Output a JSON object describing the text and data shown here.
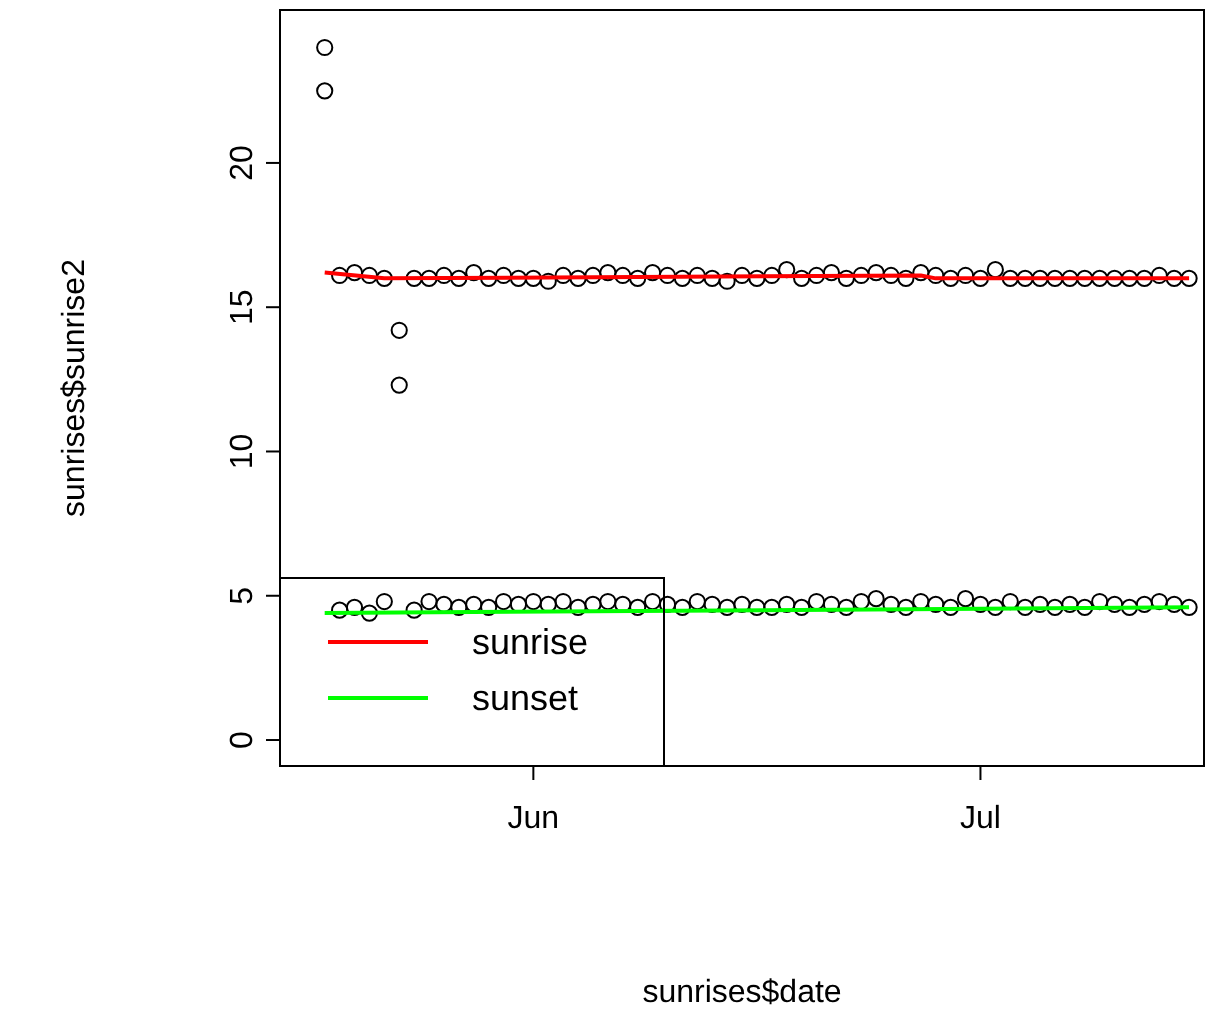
{
  "chart_data": {
    "type": "scatter",
    "xlabel": "sunrises$date",
    "ylabel": "sunrises$sunrise2",
    "x": [
      "--05-18",
      "--05-19",
      "--05-20",
      "--05-21",
      "--05-22",
      "--05-23",
      "--05-24",
      "--05-25",
      "--05-26",
      "--05-27",
      "--05-28",
      "--05-29",
      "--05-30",
      "--05-31",
      "--06-01",
      "--06-02",
      "--06-03",
      "--06-04",
      "--06-05",
      "--06-06",
      "--06-07",
      "--06-08",
      "--06-09",
      "--06-10",
      "--06-11",
      "--06-12",
      "--06-13",
      "--06-14",
      "--06-15",
      "--06-16",
      "--06-17",
      "--06-18",
      "--06-19",
      "--06-20",
      "--06-21",
      "--06-22",
      "--06-23",
      "--06-24",
      "--06-25",
      "--06-26",
      "--06-27",
      "--06-28",
      "--06-29",
      "--06-30",
      "--07-01",
      "--07-02",
      "--07-03",
      "--07-04",
      "--07-05",
      "--07-06",
      "--07-07",
      "--07-08",
      "--07-09",
      "--07-10",
      "--07-11",
      "--07-12",
      "--07-13",
      "--07-14",
      "--07-15"
    ],
    "xlim": [
      "--05-15",
      "--07-16"
    ],
    "xticks": [
      {
        "value": "--06-01",
        "label": "Jun"
      },
      {
        "value": "--07-01",
        "label": "Jul"
      }
    ],
    "ylim": [
      -0.9,
      25.3
    ],
    "yticks": [
      0,
      5,
      10,
      15,
      20
    ],
    "legend": "bottom left",
    "grid": false,
    "series": [
      {
        "marker": "circle",
        "color": "#000000",
        "values": [
          24.0,
          16.1,
          16.2,
          16.1,
          16.0,
          14.2,
          16.0,
          16.0,
          16.1,
          16.0,
          16.2,
          16.0,
          16.1,
          16.0,
          16.0,
          15.9,
          16.1,
          16.0,
          16.1,
          16.2,
          16.1,
          16.0,
          16.2,
          16.1,
          16.0,
          16.1,
          16.0,
          15.9,
          16.1,
          16.0,
          16.1,
          16.3,
          16.0,
          16.1,
          16.2,
          16.0,
          16.1,
          16.2,
          16.1,
          16.0,
          16.2,
          16.1,
          16.0,
          16.1,
          16.0,
          16.3,
          16.0,
          16.0,
          16.0,
          16.0,
          16.0,
          16.0,
          16.0,
          16.0,
          16.0,
          16.0,
          16.1,
          16.0,
          16.0
        ]
      },
      {
        "marker": "circle",
        "color": "#000000",
        "values": [
          22.5,
          4.5,
          4.6,
          4.4,
          4.8,
          12.3,
          4.5,
          4.8,
          4.7,
          4.6,
          4.7,
          4.6,
          4.8,
          4.7,
          4.8,
          4.7,
          4.8,
          4.6,
          4.7,
          4.8,
          4.7,
          4.6,
          4.8,
          4.7,
          4.6,
          4.8,
          4.7,
          4.6,
          4.7,
          4.6,
          4.6,
          4.7,
          4.6,
          4.8,
          4.7,
          4.6,
          4.8,
          4.9,
          4.7,
          4.6,
          4.8,
          4.7,
          4.6,
          4.9,
          4.7,
          4.6,
          4.8,
          4.6,
          4.7,
          4.6,
          4.7,
          4.6,
          4.8,
          4.7,
          4.6,
          4.7,
          4.8,
          4.7,
          4.6
        ]
      },
      {
        "type": "line",
        "name": "sunrise",
        "color": "#ff0000",
        "marker": "none",
        "x": [
          "--05-18",
          "--05-22",
          "--06-27",
          "--06-28",
          "--07-15"
        ],
        "values": [
          16.2,
          16.0,
          16.1,
          16.0,
          16.0
        ]
      },
      {
        "type": "line",
        "name": "sunset",
        "color": "#00ff00",
        "marker": "none",
        "x": [
          "--05-18",
          "--07-15"
        ],
        "values": [
          4.4,
          4.6
        ]
      }
    ]
  }
}
